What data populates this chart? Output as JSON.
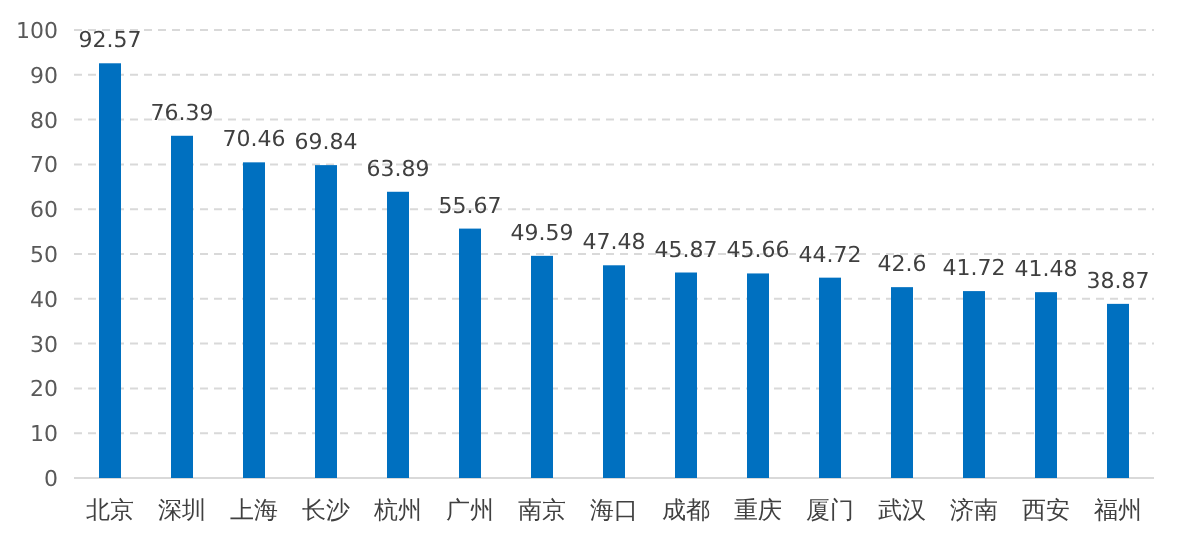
{
  "chart_data": {
    "type": "bar",
    "categories": [
      "北京",
      "深圳",
      "上海",
      "长沙",
      "杭州",
      "广州",
      "南京",
      "海口",
      "成都",
      "重庆",
      "厦门",
      "武汉",
      "济南",
      "西安",
      "福州"
    ],
    "values": [
      92.57,
      76.39,
      70.46,
      69.84,
      63.89,
      55.67,
      49.59,
      47.48,
      45.87,
      45.66,
      44.72,
      42.6,
      41.72,
      41.48,
      38.87
    ],
    "color": "#0070c0",
    "ylim": [
      0,
      100
    ],
    "yticks": [
      0,
      10,
      20,
      30,
      40,
      50,
      60,
      70,
      80,
      90,
      100
    ],
    "grid": "y",
    "data_labels": true
  }
}
